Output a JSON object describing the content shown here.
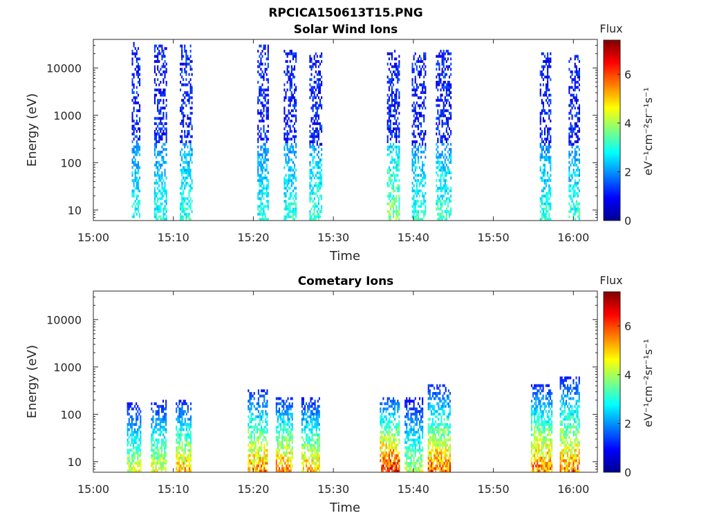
{
  "figure_title": "RPCICA150613T15.PNG",
  "chart_data": [
    {
      "type": "heatmap",
      "title": "Solar Wind Ions",
      "xlabel": "Time",
      "ylabel": "Energy (eV)",
      "yscale": "log",
      "xlim": [
        "15:00",
        "16:03"
      ],
      "ylim": [
        6,
        40000
      ],
      "xticks": [
        "15:00",
        "15:10",
        "15:20",
        "15:30",
        "15:40",
        "15:50",
        "16:00"
      ],
      "yticks": [
        "10",
        "100",
        "1000",
        "10000"
      ],
      "colorbar": {
        "label": "Flux",
        "unit": "eV⁻¹cm⁻²sr⁻¹s⁻¹",
        "ticks": [
          "0",
          "2",
          "4",
          "6"
        ],
        "range": [
          0,
          7.4
        ],
        "colormap": "jet"
      },
      "bursts": [
        {
          "start": "15:04.8",
          "end": "15:05.8",
          "emax": 35000,
          "peak_flux": 3.2
        },
        {
          "start": "15:07.6",
          "end": "15:09.1",
          "emax": 30000,
          "peak_flux": 3.2
        },
        {
          "start": "15:10.8",
          "end": "15:12.4",
          "emax": 30000,
          "peak_flux": 3.4
        },
        {
          "start": "15:20.5",
          "end": "15:21.9",
          "emax": 30000,
          "peak_flux": 3.2
        },
        {
          "start": "15:23.8",
          "end": "15:25.4",
          "emax": 25000,
          "peak_flux": 3.3
        },
        {
          "start": "15:27.0",
          "end": "15:28.6",
          "emax": 22000,
          "peak_flux": 3.5
        },
        {
          "start": "15:36.7",
          "end": "15:38.2",
          "emax": 25000,
          "peak_flux": 4.2
        },
        {
          "start": "15:39.8",
          "end": "15:41.5",
          "emax": 22000,
          "peak_flux": 3.4
        },
        {
          "start": "15:42.8",
          "end": "15:44.6",
          "emax": 25000,
          "peak_flux": 3.5
        },
        {
          "start": "15:55.8",
          "end": "15:57.2",
          "emax": 22000,
          "peak_flux": 3.3
        },
        {
          "start": "15:59.4",
          "end": "16:00.8",
          "emax": 18000,
          "peak_flux": 3.4
        }
      ]
    },
    {
      "type": "heatmap",
      "title": "Cometary Ions",
      "xlabel": "Time",
      "ylabel": "Energy (eV)",
      "yscale": "log",
      "xlim": [
        "15:00",
        "16:03"
      ],
      "ylim": [
        6,
        40000
      ],
      "xticks": [
        "15:00",
        "15:10",
        "15:20",
        "15:30",
        "15:40",
        "15:50",
        "16:00"
      ],
      "yticks": [
        "10",
        "100",
        "1000",
        "10000"
      ],
      "colorbar": {
        "label": "Flux",
        "unit": "eV⁻¹cm⁻²sr⁻¹s⁻¹",
        "ticks": [
          "0",
          "2",
          "4",
          "6"
        ],
        "range": [
          0,
          7.4
        ],
        "colormap": "jet"
      },
      "bursts": [
        {
          "start": "15:04.2",
          "end": "15:05.9",
          "emax": 180,
          "peak_flux": 4.8
        },
        {
          "start": "15:07.2",
          "end": "15:09.0",
          "emax": 200,
          "peak_flux": 5.0
        },
        {
          "start": "15:10.3",
          "end": "15:12.2",
          "emax": 200,
          "peak_flux": 5.7
        },
        {
          "start": "15:19.3",
          "end": "15:21.8",
          "emax": 320,
          "peak_flux": 6.0
        },
        {
          "start": "15:22.8",
          "end": "15:24.9",
          "emax": 230,
          "peak_flux": 6.0
        },
        {
          "start": "15:26.0",
          "end": "15:28.3",
          "emax": 220,
          "peak_flux": 5.6
        },
        {
          "start": "15:35.8",
          "end": "15:38.3",
          "emax": 220,
          "peak_flux": 7.0
        },
        {
          "start": "15:38.9",
          "end": "15:41.1",
          "emax": 220,
          "peak_flux": 4.5
        },
        {
          "start": "15:41.8",
          "end": "15:44.6",
          "emax": 420,
          "peak_flux": 6.2
        },
        {
          "start": "15:54.7",
          "end": "15:57.3",
          "emax": 420,
          "peak_flux": 6.2
        },
        {
          "start": "15:58.3",
          "end": "16:00.8",
          "emax": 600,
          "peak_flux": 6.0
        }
      ]
    }
  ]
}
